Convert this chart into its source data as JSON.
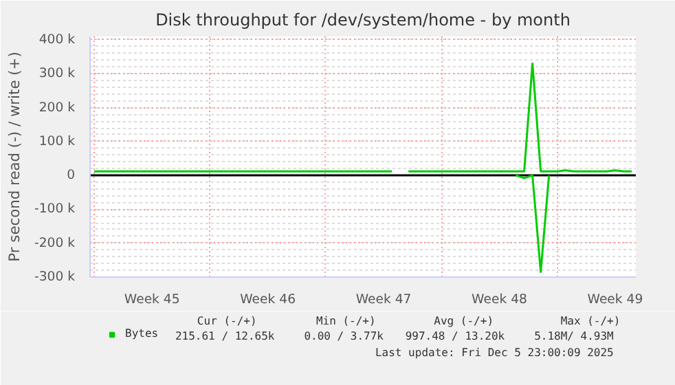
{
  "chart_data": {
    "type": "line",
    "title": "Disk throughput for /dev/system/home - by month",
    "ylabel": "Pr second read (-) / write (+)",
    "categories": [
      null,
      null,
      null,
      null,
      null,
      null,
      null,
      "Week 45",
      null,
      null,
      null,
      null,
      null,
      null,
      null,
      null,
      null,
      null,
      null,
      null,
      null,
      "Week 46",
      null,
      null,
      null,
      null,
      null,
      null,
      null,
      null,
      null,
      null,
      null,
      null,
      null,
      "Week 47",
      null,
      null,
      null,
      null,
      null,
      null,
      null,
      null,
      null,
      null,
      null,
      null,
      null,
      "Week 48",
      null,
      null,
      null,
      null,
      null,
      null,
      null,
      null,
      null,
      null,
      null,
      null,
      null,
      "Week 49",
      null,
      null
    ],
    "ylim": [
      -300000,
      410000
    ],
    "yticks": [
      {
        "value": -300000,
        "label": "-300 k"
      },
      {
        "value": -200000,
        "label": "-200 k"
      },
      {
        "value": -100000,
        "label": "-100 k"
      },
      {
        "value": 0,
        "label": "0"
      },
      {
        "value": 100000,
        "label": "100 k"
      },
      {
        "value": 200000,
        "label": "200 k"
      },
      {
        "value": 300000,
        "label": "300 k"
      },
      {
        "value": 400000,
        "label": "400 k"
      }
    ],
    "grid": true,
    "legend": "bottom",
    "ref_lines": [
      {
        "axis": "y",
        "value": 0,
        "color": "#000000"
      }
    ],
    "series": [
      {
        "name": "Bytes",
        "color": "#00cc00",
        "values": [
          12000,
          12000,
          12000,
          12000,
          12000,
          12000,
          12000,
          12000,
          12000,
          12000,
          12000,
          12000,
          12000,
          12000,
          12000,
          12000,
          12000,
          12000,
          12000,
          12000,
          12000,
          12000,
          12000,
          12000,
          12000,
          12000,
          12000,
          12000,
          12000,
          12000,
          12000,
          12000,
          12000,
          12000,
          12000,
          12000,
          12000,
          null,
          12000,
          12000,
          12000,
          12000,
          12000,
          12000,
          12000,
          12000,
          12000,
          12000,
          12000,
          12000,
          12000,
          12000,
          12000,
          330000,
          12000,
          12000,
          12000,
          15000,
          12000,
          12000,
          12000,
          12000,
          12000,
          15000,
          12000,
          12000
        ]
      },
      {
        "color": "#00cc00",
        "values": [
          null,
          null,
          null,
          null,
          null,
          null,
          null,
          null,
          null,
          null,
          null,
          null,
          null,
          null,
          null,
          null,
          null,
          null,
          null,
          null,
          null,
          null,
          null,
          null,
          null,
          null,
          null,
          null,
          null,
          null,
          null,
          null,
          null,
          null,
          null,
          null,
          null,
          null,
          null,
          null,
          null,
          null,
          null,
          null,
          null,
          null,
          null,
          null,
          null,
          null,
          null,
          0,
          -8000,
          0,
          -285000,
          0,
          null,
          null,
          null,
          null,
          null,
          null,
          null,
          null,
          null,
          null
        ]
      }
    ],
    "annotations": [
      "Cur (-/+)",
      "Min (-/+)",
      "Avg (-/+)",
      "Max (-/+)",
      "215.61 / 12.65k",
      "0.00 /  3.77k",
      "997.48 / 13.20k",
      "5.18M/  4.93M",
      "Last update: Fri Dec  5 23:00:09 2025"
    ]
  }
}
